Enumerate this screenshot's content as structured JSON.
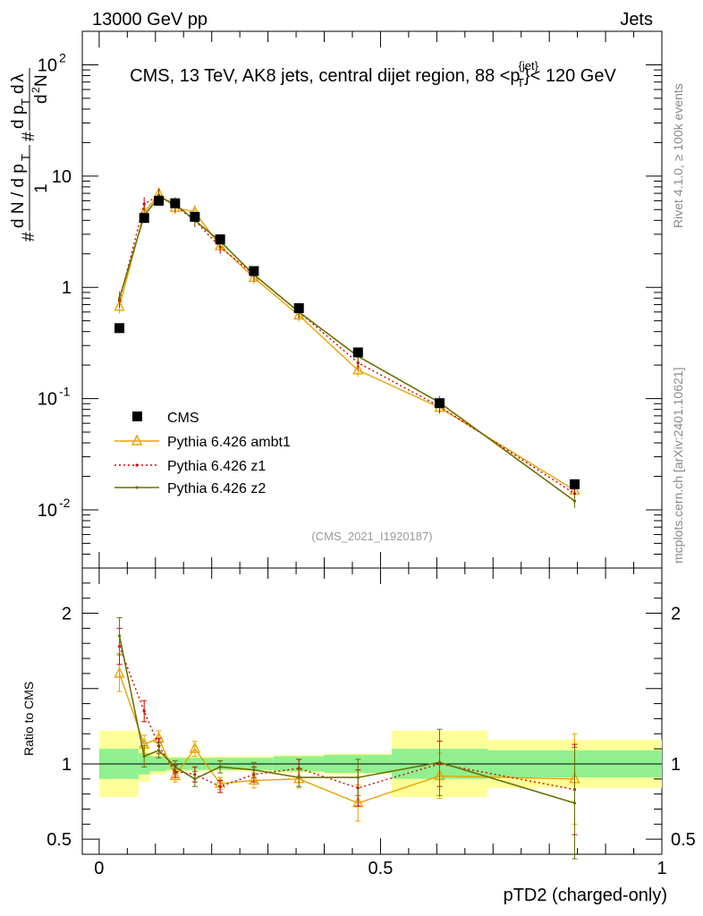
{
  "header": {
    "left": "13000 GeV pp",
    "right": "Jets"
  },
  "side_labels": {
    "rivet": "Rivet 4.1.0, ≥ 100k events",
    "mcplots": "mcplots.cern.ch [arXiv:2401.10621]"
  },
  "colors": {
    "cms": "#000000",
    "ambt1": "#e8a200",
    "z1": "#d40000",
    "z2": "#6b7000",
    "band_inner": "#90f090",
    "band_outer": "#ffff99"
  },
  "chart_data": {
    "type": "line",
    "title": "CMS, 13 TeV, AK8 jets, central dijet region, 88 <p_T^{jet}< 120 GeV",
    "analysis_id": "(CMS_2021_I1920187)",
    "xlabel": "pTD2 (charged-only)",
    "ylabel_main": "1/(dN/dp_T) d²N/(dp_T dλ)",
    "ylabel_ratio": "Ratio to CMS",
    "xlim": [
      -0.03,
      1.0
    ],
    "ylim_main": [
      0.003,
      200
    ],
    "ylim_ratio": [
      0.4,
      2.3
    ],
    "yscale_main": "log",
    "main_tick_labels": [
      "10",
      "1",
      "10",
      "10"
    ],
    "main_tick_sup": [
      "2",
      "",
      "-1",
      "-2"
    ],
    "ratio_tick_labels": [
      "2",
      "1",
      "0.5"
    ],
    "x_tick_labels": [
      "0",
      "0.5",
      "1"
    ],
    "legend_position": "middle-left",
    "bin_edges": [
      0.0,
      0.07,
      0.09,
      0.12,
      0.15,
      0.19,
      0.24,
      0.31,
      0.4,
      0.52,
      0.69,
      1.0
    ],
    "x": [
      0.036,
      0.08,
      0.106,
      0.135,
      0.17,
      0.215,
      0.275,
      0.355,
      0.46,
      0.605,
      0.845
    ],
    "series": [
      {
        "name": "CMS",
        "key": "cms",
        "values": [
          0.43,
          4.2,
          6.0,
          5.7,
          4.3,
          2.7,
          1.4,
          0.65,
          0.26,
          0.091,
          0.017
        ],
        "ratio_inner": [
          0.1,
          0.07,
          0.05,
          0.04,
          0.04,
          0.04,
          0.04,
          0.05,
          0.06,
          0.1,
          0.09
        ],
        "ratio_outer": [
          0.22,
          0.12,
          0.07,
          0.05,
          0.05,
          0.05,
          0.05,
          0.06,
          0.07,
          0.22,
          0.16
        ]
      },
      {
        "name": "Pythia 6.426 ambt1",
        "key": "ambt1",
        "values": [
          0.67,
          4.7,
          6.9,
          5.2,
          4.75,
          2.35,
          1.22,
          0.56,
          0.18,
          0.083,
          0.015
        ],
        "ratio": [
          1.6,
          1.13,
          1.17,
          0.92,
          1.1,
          0.87,
          0.89,
          0.9,
          0.74,
          0.92,
          0.9
        ],
        "ratio_err": [
          0.12,
          0.06,
          0.05,
          0.04,
          0.05,
          0.04,
          0.05,
          0.06,
          0.12,
          0.15,
          0.3
        ]
      },
      {
        "name": "Pythia 6.426 z1",
        "key": "z1",
        "values": [
          0.76,
          5.6,
          6.7,
          5.4,
          4.0,
          2.3,
          1.3,
          0.6,
          0.21,
          0.085,
          0.014
        ],
        "ratio": [
          1.78,
          1.35,
          1.12,
          0.95,
          0.93,
          0.85,
          0.93,
          0.97,
          0.84,
          1.0,
          0.83
        ],
        "ratio_err": [
          0.12,
          0.07,
          0.05,
          0.04,
          0.05,
          0.04,
          0.05,
          0.06,
          0.12,
          0.15,
          0.3
        ]
      },
      {
        "name": "Pythia 6.426 z2",
        "key": "z2",
        "values": [
          0.8,
          4.4,
          6.5,
          5.6,
          4.0,
          2.6,
          1.3,
          0.6,
          0.24,
          0.092,
          0.012
        ],
        "ratio": [
          1.85,
          1.05,
          1.09,
          0.98,
          0.9,
          0.98,
          0.96,
          0.91,
          0.91,
          1.01,
          0.74
        ],
        "ratio_err": [
          0.12,
          0.07,
          0.05,
          0.04,
          0.05,
          0.04,
          0.05,
          0.06,
          0.12,
          0.22,
          0.37
        ]
      }
    ]
  }
}
